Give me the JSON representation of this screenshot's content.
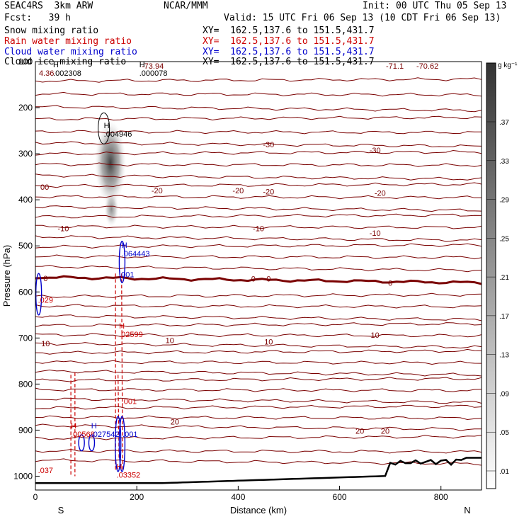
{
  "header": {
    "model": "SEAC4RS  3km ARW",
    "org": "NCAR/MMM",
    "init": "Init: 00 UTC Thu 05 Sep 13",
    "fcst": "Fcst:   39 h",
    "valid": "Valid: 15 UTC Fri 06 Sep 13 (10 CDT Fri 06 Sep 13)"
  },
  "fields": [
    {
      "name": "Snow mixing ratio",
      "xy": "XY=  162.5,137.6 to 151.5,431.7",
      "color": "#000000"
    },
    {
      "name": "Rain water mixing ratio",
      "xy": "XY=  162.5,137.6 to 151.5,431.7",
      "color": "#cc0000"
    },
    {
      "name": "Cloud water mixing ratio",
      "xy": "XY=  162.5,137.6 to 151.5,431.7",
      "color": "#0000cc"
    },
    {
      "name": "Cloud ice mixing ratio",
      "xy": "XY=  162.5,137.6 to 151.5,431.7",
      "color": "#000000"
    }
  ],
  "chart_data": {
    "type": "cross-section",
    "xlabel": "Distance (km)",
    "ylabel": "Pressure (hPa)",
    "xlim": [
      0,
      880
    ],
    "ylim": [
      100,
      1030
    ],
    "x_ticks": [
      "0",
      "200",
      "400",
      "600",
      "800"
    ],
    "y_ticks": [
      "100",
      "200",
      "300",
      "400",
      "500",
      "600",
      "700",
      "800",
      "900",
      "1000"
    ],
    "endpoints": {
      "left": "S",
      "right": "N"
    },
    "colorbar": {
      "unit": "g kg⁻¹",
      "ticks": [
        ".37",
        ".33",
        ".29",
        ".25",
        ".21",
        ".17",
        ".13",
        ".09",
        ".05",
        ".01"
      ]
    },
    "temperature_contours": {
      "levels_labeled": [
        "-30",
        "-20",
        "-10",
        "0",
        "10",
        "20"
      ],
      "labels": [
        {
          "text": "-30",
          "x": 460,
          "p": 280
        },
        {
          "text": "-30",
          "x": 670,
          "p": 292
        },
        {
          "text": "-20",
          "x": 240,
          "p": 380
        },
        {
          "text": "-20",
          "x": 400,
          "p": 380
        },
        {
          "text": "-20",
          "x": 460,
          "p": 382
        },
        {
          "text": "-20",
          "x": 680,
          "p": 385
        },
        {
          "text": "-10",
          "x": 55,
          "p": 462
        },
        {
          "text": "-10",
          "x": 440,
          "p": 462
        },
        {
          "text": "-10",
          "x": 670,
          "p": 472
        },
        {
          "text": "0",
          "x": 20,
          "p": 570
        },
        {
          "text": "0",
          "x": 430,
          "p": 571
        },
        {
          "text": "0",
          "x": 460,
          "p": 571
        },
        {
          "text": "0",
          "x": 700,
          "p": 580
        },
        {
          "text": "10",
          "x": 20,
          "p": 712
        },
        {
          "text": "10",
          "x": 265,
          "p": 705
        },
        {
          "text": "10",
          "x": 460,
          "p": 708
        },
        {
          "text": "10",
          "x": 670,
          "p": 693
        },
        {
          "text": "20",
          "x": 275,
          "p": 882
        },
        {
          "text": "20",
          "x": 640,
          "p": 902
        },
        {
          "text": "20",
          "x": 690,
          "p": 902
        }
      ],
      "top_labels": [
        "4.36",
        "-73.94",
        "-71.1",
        "-70.62",
        "00"
      ]
    },
    "maxima": [
      {
        "marker": "H",
        "value": ".002308",
        "x": 35,
        "p": 128,
        "color": "#000000"
      },
      {
        "marker": "H",
        "value": ".000078",
        "x": 205,
        "p": 128,
        "color": "#000000"
      },
      {
        "marker": "H",
        "value": ".004946",
        "x": 135,
        "p": 260,
        "color": "#000000"
      },
      {
        "marker": "H",
        "value": ".064443",
        "x": 170,
        "p": 520,
        "color": "#0000cc"
      },
      {
        "marker": "",
        "value": ".001",
        "x": 165,
        "p": 565,
        "color": "#0000cc"
      },
      {
        "marker": "",
        "value": ".029",
        "x": 5,
        "p": 620,
        "color": "#cc0000"
      },
      {
        "marker": "H",
        "value": ".02599",
        "x": 165,
        "p": 695,
        "color": "#cc0000"
      },
      {
        "marker": "",
        "value": ".001",
        "x": 170,
        "p": 840,
        "color": "#cc0000"
      },
      {
        "marker": "H",
        "value": ".00568",
        "x": 70,
        "p": 912,
        "color": "#cc0000"
      },
      {
        "marker": "H",
        "value": ".027542",
        "x": 110,
        "p": 912,
        "color": "#0000cc"
      },
      {
        "marker": "",
        "value": ".001",
        "x": 172,
        "p": 912,
        "color": "#0000cc"
      },
      {
        "marker": "H",
        "value": ".03352",
        "x": 160,
        "p": 1000,
        "color": "#cc0000"
      },
      {
        "marker": "",
        "value": ".037",
        "x": 5,
        "p": 990,
        "color": "#cc0000"
      }
    ]
  }
}
